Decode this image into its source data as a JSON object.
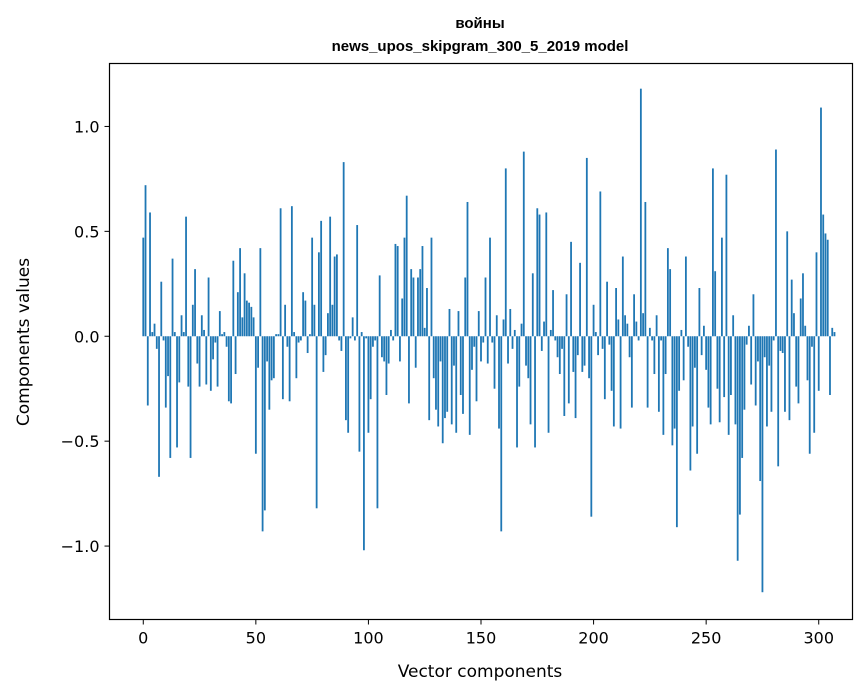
{
  "chart_data": {
    "type": "bar",
    "title": "войны",
    "subtitle": "news_upos_skipgram_300_5_2019 model",
    "xlabel": "Vector components",
    "ylabel": "Components values",
    "xlim": [
      -15,
      315
    ],
    "ylim": [
      -1.35,
      1.3
    ],
    "xticks": [
      0,
      50,
      100,
      150,
      200,
      250,
      300
    ],
    "yticks": [
      -1.0,
      -0.5,
      0.0,
      0.5,
      1.0
    ],
    "ytick_labels": [
      "−1.0",
      "−0.5",
      "0.0",
      "0.5",
      "1.0"
    ],
    "color": "#1f77b4",
    "values": [
      0.47,
      0.72,
      -0.33,
      0.59,
      0.02,
      0.06,
      -0.06,
      -0.67,
      0.26,
      -0.02,
      -0.34,
      -0.19,
      -0.58,
      0.37,
      0.02,
      -0.53,
      -0.22,
      0.1,
      0.02,
      0.57,
      -0.24,
      -0.58,
      0.15,
      0.32,
      -0.13,
      -0.24,
      0.1,
      0.03,
      -0.23,
      0.28,
      -0.26,
      -0.11,
      -0.03,
      -0.24,
      0.12,
      0.01,
      0.02,
      -0.05,
      -0.31,
      -0.32,
      0.36,
      -0.18,
      0.21,
      0.42,
      0.09,
      0.3,
      0.17,
      0.16,
      0.14,
      0.09,
      -0.56,
      -0.15,
      0.42,
      -0.93,
      -0.83,
      -0.12,
      -0.35,
      -0.21,
      -0.2,
      0.01,
      0.01,
      0.61,
      -0.3,
      0.15,
      -0.05,
      -0.31,
      0.62,
      0.02,
      -0.2,
      -0.03,
      -0.02,
      0.21,
      0.17,
      -0.08,
      0.01,
      0.47,
      0.15,
      -0.82,
      0.4,
      0.55,
      -0.17,
      -0.09,
      0.11,
      0.57,
      0.15,
      0.38,
      0.39,
      -0.02,
      -0.07,
      0.83,
      -0.4,
      -0.46,
      -0.01,
      0.09,
      -0.02,
      0.53,
      -0.55,
      0.02,
      -1.02,
      -0.01,
      -0.46,
      -0.3,
      -0.05,
      -0.02,
      -0.82,
      0.29,
      -0.1,
      -0.12,
      -0.28,
      -0.13,
      0.03,
      -0.02,
      0.44,
      0.43,
      -0.12,
      0.18,
      0.47,
      0.67,
      -0.32,
      0.32,
      0.28,
      -0.15,
      0.28,
      0.32,
      0.43,
      0.04,
      0.23,
      -0.4,
      0.47,
      -0.2,
      -0.35,
      -0.43,
      -0.12,
      -0.51,
      -0.39,
      -0.36,
      0.13,
      -0.42,
      -0.14,
      -0.46,
      0.12,
      -0.28,
      -0.37,
      0.28,
      0.64,
      -0.47,
      -0.16,
      -0.05,
      -0.31,
      0.12,
      -0.12,
      -0.03,
      0.28,
      -0.13,
      0.47,
      -0.03,
      -0.25,
      0.1,
      -0.44,
      -0.93,
      0.08,
      0.8,
      -0.13,
      0.13,
      -0.06,
      0.03,
      -0.53,
      -0.24,
      0.06,
      0.88,
      -0.14,
      -0.2,
      -0.42,
      0.3,
      -0.53,
      0.61,
      0.58,
      -0.07,
      0.07,
      0.59,
      -0.46,
      0.03,
      0.22,
      -0.02,
      -0.1,
      -0.18,
      -0.06,
      -0.38,
      0.2,
      -0.32,
      0.45,
      -0.17,
      -0.39,
      -0.09,
      0.35,
      -0.17,
      -0.14,
      0.85,
      -0.2,
      -0.86,
      0.15,
      0.02,
      -0.09,
      0.69,
      -0.06,
      -0.3,
      0.26,
      -0.04,
      -0.26,
      -0.43,
      0.23,
      0.08,
      -0.44,
      0.38,
      0.1,
      0.06,
      -0.1,
      -0.34,
      0.2,
      0.07,
      -0.02,
      1.18,
      0.11,
      0.64,
      -0.34,
      0.04,
      -0.02,
      -0.18,
      0.1,
      -0.36,
      -0.02,
      -0.47,
      -0.18,
      0.42,
      0.32,
      -0.52,
      -0.44,
      -0.91,
      -0.26,
      0.03,
      -0.21,
      0.38,
      -0.05,
      -0.64,
      -0.43,
      -0.15,
      -0.56,
      0.23,
      -0.09,
      0.05,
      -0.16,
      -0.34,
      -0.42,
      0.8,
      0.31,
      -0.25,
      -0.41,
      0.47,
      -0.29,
      0.77,
      -0.47,
      -0.28,
      0.1,
      -0.42,
      -1.07,
      -0.85,
      -0.58,
      -0.35,
      -0.04,
      0.05,
      -0.23,
      0.2,
      -0.33,
      -0.12,
      -0.69,
      -1.22,
      -0.1,
      -0.43,
      -0.14,
      -0.36,
      -0.02,
      0.89,
      -0.62,
      -0.07,
      -0.08,
      -0.36,
      0.5,
      -0.4,
      0.27,
      0.11,
      -0.24,
      -0.32,
      0.18,
      0.3,
      0.05,
      -0.21,
      -0.56,
      -0.05,
      -0.46,
      0.4,
      -0.26,
      1.09,
      0.58,
      0.49,
      0.46,
      -0.28,
      0.04,
      0.02
    ]
  }
}
